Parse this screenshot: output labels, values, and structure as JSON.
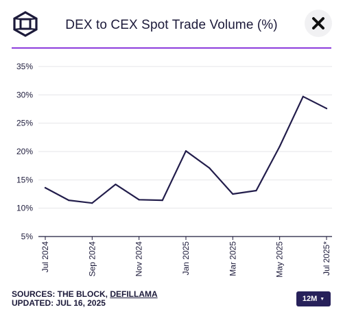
{
  "header": {
    "title": "DEX to CEX Spot Trade Volume (%)",
    "logo_icon": "cube-logo-icon",
    "close_icon": "close-icon"
  },
  "colors": {
    "accent": "#8c3cdc",
    "line": "#221d4b",
    "button_bg": "#27215a"
  },
  "footer": {
    "sources_label": "SOURCES: THE BLOCK, ",
    "sources_link": "DEFILLAMA",
    "updated": "UPDATED: JUL 16, 2025",
    "range_button": "12M",
    "range_caret": "▼"
  },
  "chart_data": {
    "type": "line",
    "title": "DEX to CEX Spot Trade Volume (%)",
    "xlabel": "",
    "ylabel": "",
    "x": [
      "Jul 2024",
      "Aug 2024",
      "Sep 2024",
      "Oct 2024",
      "Nov 2024",
      "Dec 2024",
      "Jan 2025",
      "Feb 2025",
      "Mar 2025",
      "Apr 2025",
      "May 2025",
      "Jun 2025",
      "Jul 2025*"
    ],
    "series": [
      {
        "values": [
          13.6,
          11.4,
          10.9,
          14.2,
          11.5,
          11.4,
          20.1,
          17.1,
          12.5,
          13.1,
          20.9,
          29.7,
          27.6
        ]
      }
    ],
    "ylim": [
      5,
      35
    ],
    "yticks": [
      5,
      10,
      15,
      20,
      25,
      30,
      35
    ],
    "ytick_labels": [
      "5%",
      "10%",
      "15%",
      "20%",
      "25%",
      "30%",
      "35%"
    ],
    "xtick_labels": [
      "Jul 2024",
      "Sep 2024",
      "Nov 2024",
      "Jan 2025",
      "Mar 2025",
      "May 2025",
      "Jul 2025*"
    ],
    "xtick_indices": [
      0,
      2,
      4,
      6,
      8,
      10,
      12
    ],
    "grid": true,
    "legend": "none"
  }
}
